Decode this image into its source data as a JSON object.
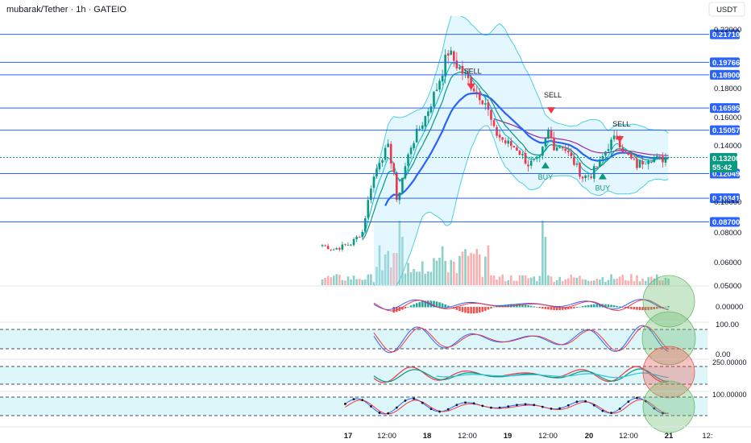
{
  "header": {
    "title": "mubarak/Tether · 1h · GATEIO",
    "currency": "USDT"
  },
  "price_axis": {
    "top_label": "0.22000",
    "ticks": [
      "0.18000",
      "0.16000",
      "0.14000",
      "0.10000",
      "0.08000",
      "0.06000"
    ],
    "bottom_label": "0.05000"
  },
  "current_price": {
    "value": "0.13200",
    "countdown": "55:42",
    "color": "#089981"
  },
  "levels": [
    {
      "value": "0.21710"
    },
    {
      "value": "0.19766"
    },
    {
      "value": "0.18900"
    },
    {
      "value": "0.16595"
    },
    {
      "value": "0.15057"
    },
    {
      "value": "0.12049"
    },
    {
      "value": "0.10341"
    },
    {
      "value": "0.08700"
    }
  ],
  "time_axis": {
    "ticks": [
      {
        "label": "17",
        "bold": true
      },
      {
        "label": "12:00",
        "bold": false
      },
      {
        "label": "18",
        "bold": true
      },
      {
        "label": "12:00",
        "bold": false
      },
      {
        "label": "19",
        "bold": true
      },
      {
        "label": "12:00",
        "bold": false
      },
      {
        "label": "20",
        "bold": true
      },
      {
        "label": "12:00",
        "bold": false
      },
      {
        "label": "21",
        "bold": true
      },
      {
        "label": "12:",
        "bold": false
      }
    ]
  },
  "signals": [
    {
      "label": "SELL",
      "type": "sell"
    },
    {
      "label": "SELL",
      "type": "sell"
    },
    {
      "label": "SELL",
      "type": "sell"
    },
    {
      "label": "BUY",
      "type": "buy"
    },
    {
      "label": "BUY",
      "type": "buy"
    }
  ],
  "panes": {
    "macd": {
      "label": "0.00000"
    },
    "stoch": {
      "top": "100.00",
      "bottom": "0.00"
    },
    "cci": {
      "label": "250.00000"
    },
    "rsi": {
      "label": "100.00000"
    }
  },
  "colors": {
    "up": "#089981",
    "down": "#f23645",
    "level_line": "#2962ff",
    "band_fill": "#b3e5fc",
    "band_line": "#4dd0e1",
    "ma_fast": "#00bcd4",
    "ma_mid": "#089981",
    "ma_slow": "#2962ff",
    "ma_long": "#9c27b0"
  },
  "chart_data": {
    "type": "candlestick",
    "title": "mubarak/Tether · 1h · GATEIO",
    "x_ticks": [
      "17",
      "12:00",
      "18",
      "12:00",
      "19",
      "12:00",
      "20",
      "12:00",
      "21",
      "12:"
    ],
    "ylim": [
      0.05,
      0.22
    ],
    "horizontal_levels": [
      0.2171,
      0.19766,
      0.189,
      0.16595,
      0.15057,
      0.12049,
      0.10341,
      0.087
    ],
    "last_price": 0.132,
    "anchors": [
      {
        "i": 0,
        "p": 0.071
      },
      {
        "i": 4,
        "p": 0.068
      },
      {
        "i": 10,
        "p": 0.072
      },
      {
        "i": 14,
        "p": 0.08
      },
      {
        "i": 17,
        "p": 0.112
      },
      {
        "i": 20,
        "p": 0.13
      },
      {
        "i": 23,
        "p": 0.138
      },
      {
        "i": 25,
        "p": 0.122
      },
      {
        "i": 26,
        "p": 0.1
      },
      {
        "i": 28,
        "p": 0.118
      },
      {
        "i": 31,
        "p": 0.14
      },
      {
        "i": 36,
        "p": 0.16
      },
      {
        "i": 40,
        "p": 0.18
      },
      {
        "i": 44,
        "p": 0.205
      },
      {
        "i": 47,
        "p": 0.196
      },
      {
        "i": 50,
        "p": 0.188
      },
      {
        "i": 53,
        "p": 0.18
      },
      {
        "i": 57,
        "p": 0.17
      },
      {
        "i": 60,
        "p": 0.15
      },
      {
        "i": 64,
        "p": 0.142
      },
      {
        "i": 68,
        "p": 0.138
      },
      {
        "i": 72,
        "p": 0.127
      },
      {
        "i": 76,
        "p": 0.13
      },
      {
        "i": 79,
        "p": 0.15
      },
      {
        "i": 81,
        "p": 0.14
      },
      {
        "i": 84,
        "p": 0.14
      },
      {
        "i": 88,
        "p": 0.128
      },
      {
        "i": 91,
        "p": 0.118
      },
      {
        "i": 94,
        "p": 0.12
      },
      {
        "i": 97,
        "p": 0.128
      },
      {
        "i": 100,
        "p": 0.14
      },
      {
        "i": 103,
        "p": 0.146
      },
      {
        "i": 106,
        "p": 0.134
      },
      {
        "i": 110,
        "p": 0.126
      },
      {
        "i": 114,
        "p": 0.132
      },
      {
        "i": 118,
        "p": 0.13
      },
      {
        "i": 121,
        "p": 0.132
      }
    ]
  }
}
